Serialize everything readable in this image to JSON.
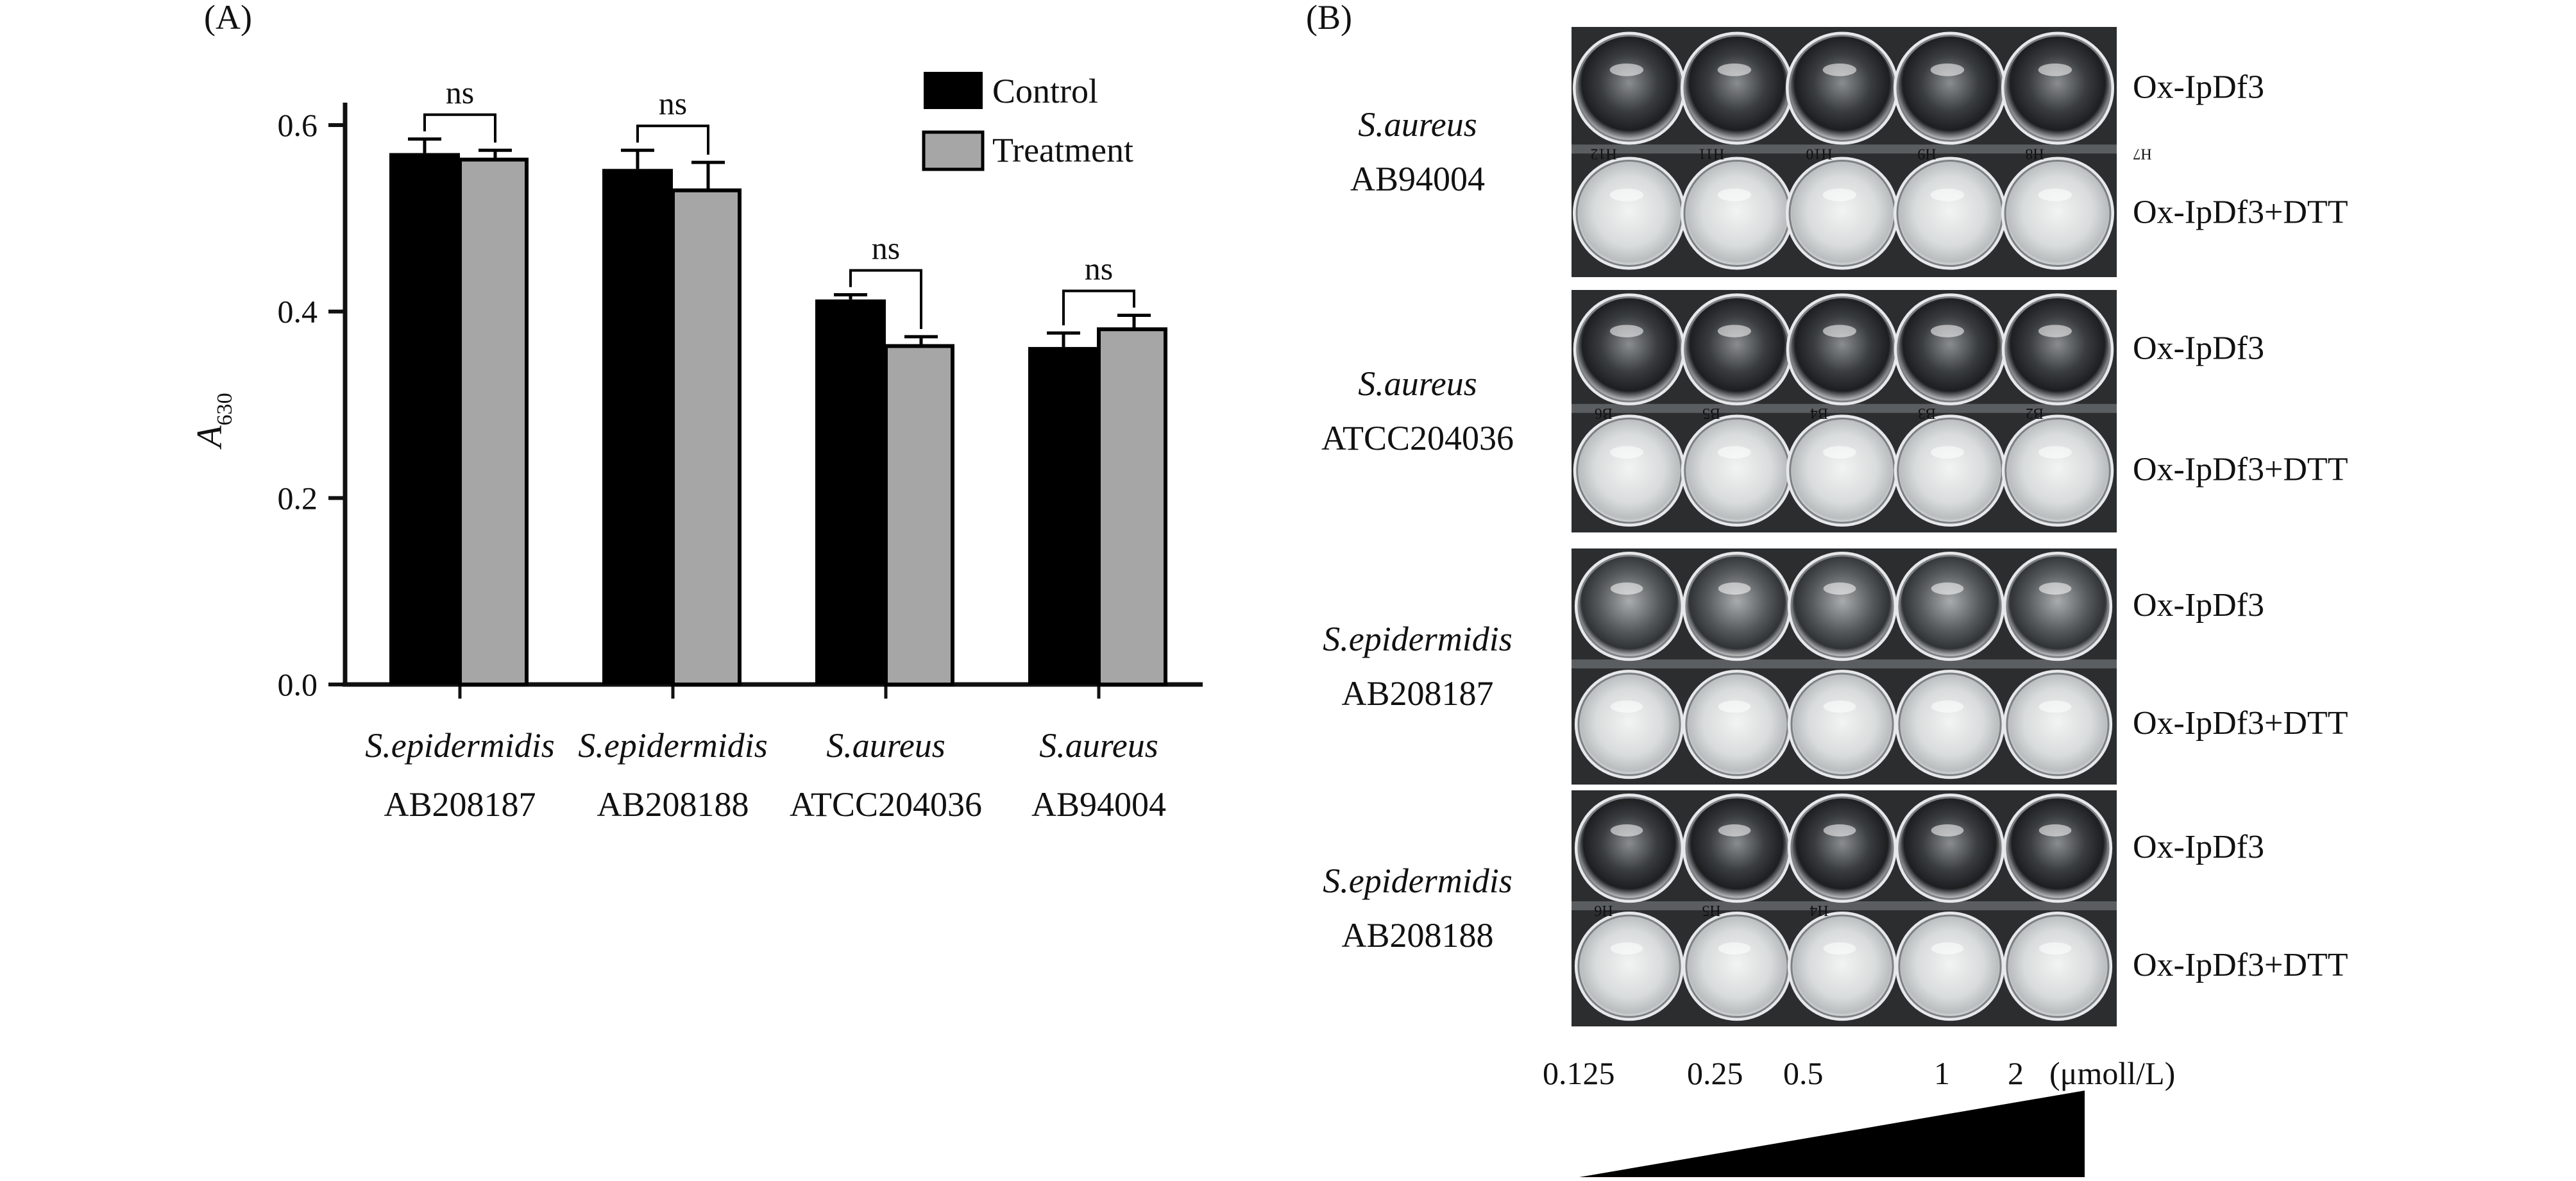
{
  "panel_a": {
    "label": "(A)"
  },
  "panel_b": {
    "label": "(B)",
    "blocks": [
      {
        "species": "S.aureus",
        "strain": "AB94004",
        "well_labels": [
          "H12",
          "H11",
          "H10",
          "H9",
          "H8",
          "H7"
        ]
      },
      {
        "species": "S.aureus",
        "strain": "ATCC204036",
        "well_labels": [
          "B6",
          "B5",
          "B4",
          "B3",
          "B2"
        ]
      },
      {
        "species": "S.epidermidis",
        "strain": "AB208187",
        "well_labels": []
      },
      {
        "species": "S.epidermidis",
        "strain": "AB208188",
        "well_labels": [
          "H6",
          "H5",
          "H4"
        ]
      }
    ],
    "row_labels": [
      "Ox-IpDf3",
      "Ox-IpDf3+DTT"
    ],
    "concentrations": [
      "0.125",
      "0.25",
      "0.5",
      "1",
      "2"
    ],
    "concentration_unit": "(μmoll/L)"
  },
  "chart_data": {
    "type": "bar",
    "ylabel": "A",
    "ylabel_sub": "630",
    "ylim": [
      0,
      0.6
    ],
    "yticks": [
      "0.0",
      "0.2",
      "0.4",
      "0.6"
    ],
    "grid": false,
    "legend_position": "top-right",
    "categories": [
      {
        "species": "S.epidermidis",
        "strain": "AB208187"
      },
      {
        "species": "S.epidermidis",
        "strain": "AB208188"
      },
      {
        "species": "S.aureus",
        "strain": "ATCC204036"
      },
      {
        "species": "S.aureus",
        "strain": "AB94004"
      }
    ],
    "series": [
      {
        "name": "Control",
        "color": "#000000",
        "values": [
          0.57,
          0.553,
          0.413,
          0.362
        ],
        "errors": [
          0.015,
          0.02,
          0.005,
          0.015
        ]
      },
      {
        "name": "Treatment",
        "color": "#a6a6a6",
        "values": [
          0.563,
          0.53,
          0.363,
          0.381
        ],
        "errors": [
          0.01,
          0.03,
          0.01,
          0.015
        ]
      }
    ],
    "significance": [
      "ns",
      "ns",
      "ns",
      "ns"
    ]
  }
}
